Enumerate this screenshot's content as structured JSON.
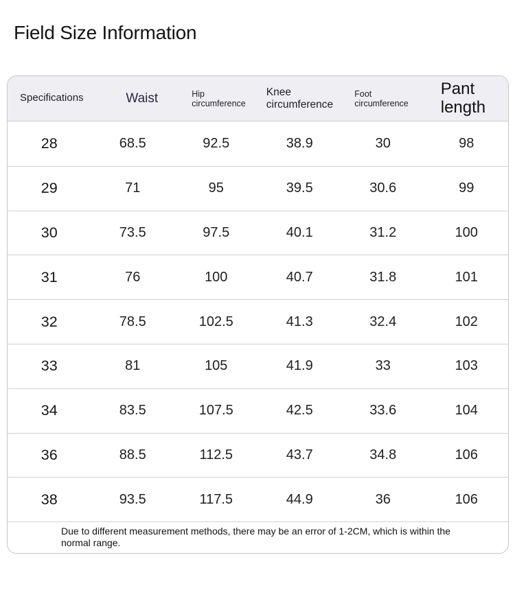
{
  "page": {
    "title": "Field Size Information"
  },
  "table": {
    "columns": [
      {
        "label": "Specifications"
      },
      {
        "label": "Waist"
      },
      {
        "label": "Hip circumference"
      },
      {
        "label": "Knee circumference"
      },
      {
        "label": "Foot circumference"
      },
      {
        "label": "Pant length"
      }
    ],
    "rows": [
      [
        "28",
        "68.5",
        "92.5",
        "38.9",
        "30",
        "98"
      ],
      [
        "29",
        "71",
        "95",
        "39.5",
        "30.6",
        "99"
      ],
      [
        "30",
        "73.5",
        "97.5",
        "40.1",
        "31.2",
        "100"
      ],
      [
        "31",
        "76",
        "100",
        "40.7",
        "31.8",
        "101"
      ],
      [
        "32",
        "78.5",
        "102.5",
        "41.3",
        "32.4",
        "102"
      ],
      [
        "33",
        "81",
        "105",
        "41.9",
        "33",
        "103"
      ],
      [
        "34",
        "83.5",
        "107.5",
        "42.5",
        "33.6",
        "104"
      ],
      [
        "36",
        "88.5",
        "112.5",
        "43.7",
        "34.8",
        "106"
      ],
      [
        "38",
        "93.5",
        "117.5",
        "44.9",
        "36",
        "106"
      ]
    ],
    "note": "Due to different measurement methods, there may be an error of 1-2CM, which is within the normal range."
  },
  "colors": {
    "header_bg": "#efeef3",
    "accent_text": "#2a2741",
    "border": "#c5c5c8",
    "row_divider": "#d2d2d5"
  }
}
